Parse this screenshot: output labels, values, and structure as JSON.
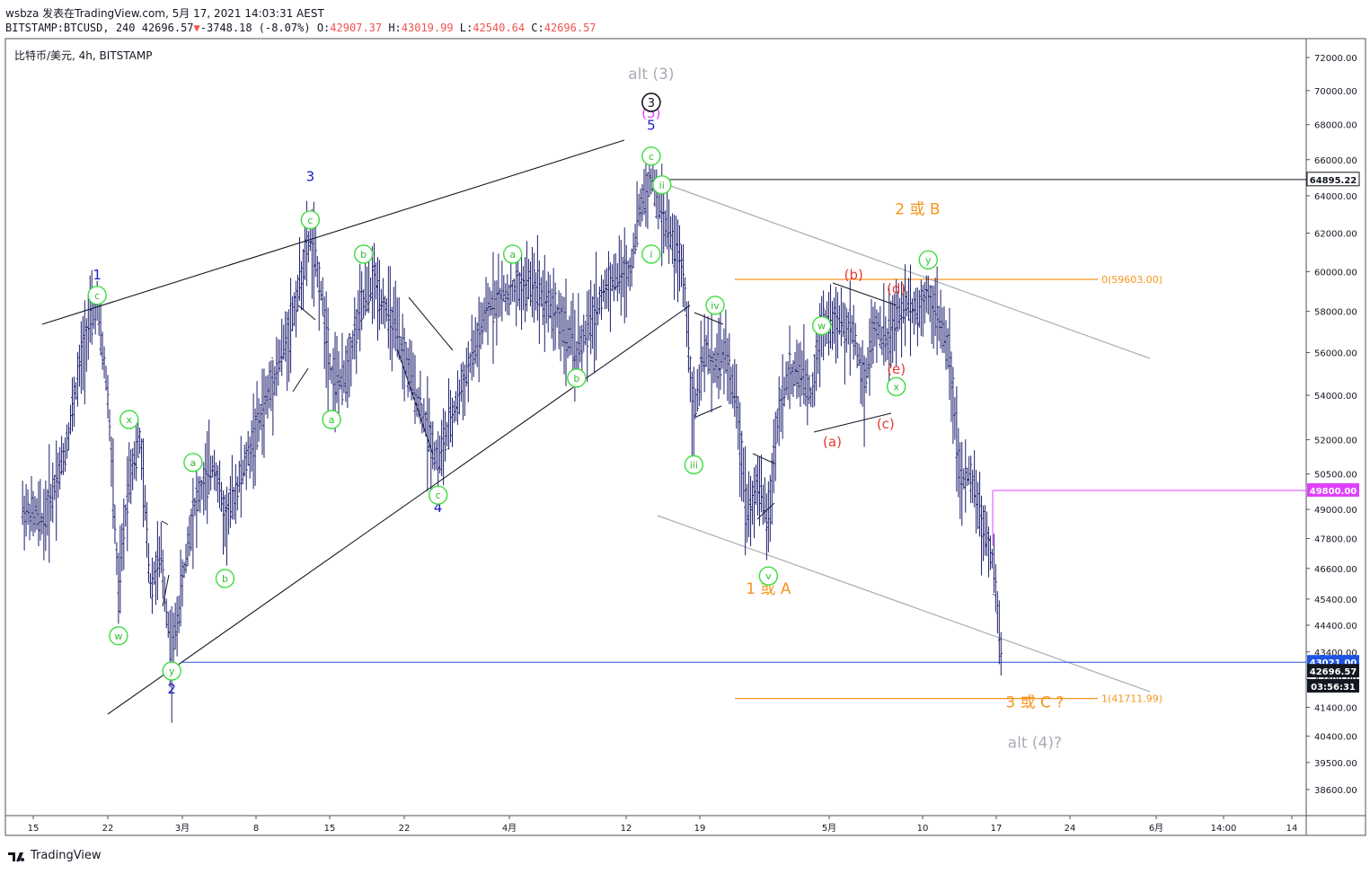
{
  "header": {
    "line1": "wsbza 发表在TradingView.com, 5月 17, 2021 14:03:31 AEST",
    "symbol": "BITSTAMP:BTCUSD, 240",
    "last": "42696.57",
    "change": "-3748.18 (-8.07%)",
    "o_label": "O:",
    "o": "42907.37",
    "h_label": "H:",
    "h": "43019.99",
    "l_label": "L:",
    "l": "42540.64",
    "c_label": "C:",
    "c": "42696.57"
  },
  "chart_title": "比特币/美元, 4h, BITSTAMP",
  "footer": {
    "brand": "TradingView"
  },
  "chart_data": {
    "type": "line",
    "scale": "log",
    "ylim": [
      37500,
      73000
    ],
    "y_ticks": [
      38600,
      39500,
      40400,
      41400,
      42400,
      43400,
      44400,
      45400,
      46600,
      47800,
      49000,
      50500,
      52000,
      54000,
      56000,
      58000,
      60000,
      62000,
      64000,
      66000,
      68000,
      70000,
      72000
    ],
    "y_tick_labels": [
      "38600.00",
      "39500.00",
      "40400.00",
      "41400.00",
      "42400.00",
      "43400.00",
      "44400.00",
      "45400.00",
      "46600.00",
      "47800.00",
      "49000.00",
      "50500.00",
      "52000.00",
      "54000.00",
      "56000.00",
      "58000.00",
      "60000.00",
      "62000.00",
      "64000.00",
      "66000.00",
      "68000.00",
      "70000.00",
      "72000.00"
    ],
    "x_ticks": [
      "15",
      "22",
      "3月",
      "8",
      "15",
      "22",
      "4月",
      "12",
      "19",
      "5月",
      "10",
      "17",
      "24",
      "6月",
      "14:00",
      "14"
    ],
    "price_path": [
      [
        "2021-02-14",
        49000
      ],
      [
        "2021-02-16",
        48500
      ],
      [
        "2021-02-18",
        51500
      ],
      [
        "2021-02-20",
        57000
      ],
      [
        "2021-02-21",
        58300
      ],
      [
        "2021-02-22",
        54000
      ],
      [
        "2021-02-23",
        45500
      ],
      [
        "2021-02-24",
        50500
      ],
      [
        "2021-02-25",
        52000
      ],
      [
        "2021-02-26",
        46000
      ],
      [
        "2021-02-27",
        47000
      ],
      [
        "2021-02-28",
        43100
      ],
      [
        "2021-03-01",
        46000
      ],
      [
        "2021-03-02",
        49000
      ],
      [
        "2021-03-04",
        51000
      ],
      [
        "2021-03-05",
        48500
      ],
      [
        "2021-03-07",
        51000
      ],
      [
        "2021-03-09",
        54000
      ],
      [
        "2021-03-11",
        57000
      ],
      [
        "2021-03-13",
        61800
      ],
      [
        "2021-03-14",
        59000
      ],
      [
        "2021-03-15",
        55000
      ],
      [
        "2021-03-16",
        54500
      ],
      [
        "2021-03-18",
        58500
      ],
      [
        "2021-03-19",
        59500
      ],
      [
        "2021-03-21",
        57000
      ],
      [
        "2021-03-23",
        54000
      ],
      [
        "2021-03-25",
        51000
      ],
      [
        "2021-03-26",
        52500
      ],
      [
        "2021-03-28",
        55500
      ],
      [
        "2021-03-30",
        58500
      ],
      [
        "2021-04-01",
        59000
      ],
      [
        "2021-04-03",
        59500
      ],
      [
        "2021-04-05",
        58000
      ],
      [
        "2021-04-07",
        56000
      ],
      [
        "2021-04-08",
        57000
      ],
      [
        "2021-04-10",
        59500
      ],
      [
        "2021-04-12",
        60000
      ],
      [
        "2021-04-13",
        63500
      ],
      [
        "2021-04-14",
        64895
      ],
      [
        "2021-04-15",
        63000
      ],
      [
        "2021-04-16",
        61500
      ],
      [
        "2021-04-17",
        60000
      ],
      [
        "2021-04-18",
        53000
      ],
      [
        "2021-04-19",
        56000
      ],
      [
        "2021-04-20",
        55500
      ],
      [
        "2021-04-21",
        56000
      ],
      [
        "2021-04-22",
        53500
      ],
      [
        "2021-04-23",
        49000
      ],
      [
        "2021-04-24",
        50000
      ],
      [
        "2021-04-25",
        48500
      ],
      [
        "2021-04-26",
        53500
      ],
      [
        "2021-04-27",
        55000
      ],
      [
        "2021-04-28",
        55000
      ],
      [
        "2021-04-29",
        54000
      ],
      [
        "2021-04-30",
        57500
      ],
      [
        "2021-05-01",
        57500
      ],
      [
        "2021-05-03",
        57000
      ],
      [
        "2021-05-04",
        54500
      ],
      [
        "2021-05-05",
        57500
      ],
      [
        "2021-05-06",
        56500
      ],
      [
        "2021-05-08",
        58500
      ],
      [
        "2021-05-09",
        58000
      ],
      [
        "2021-05-10",
        59000
      ],
      [
        "2021-05-11",
        57500
      ],
      [
        "2021-05-12",
        56000
      ],
      [
        "2021-05-13",
        50000
      ],
      [
        "2021-05-14",
        50500
      ],
      [
        "2021-05-15",
        48500
      ],
      [
        "2021-05-16",
        47000
      ],
      [
        "2021-05-17",
        42696.57
      ]
    ],
    "price_labels": [
      {
        "value": "64895.22",
        "bg": "#ffffff",
        "fg": "#131722",
        "price": 64895.22
      },
      {
        "value": "49800.00",
        "bg": "#e040fb",
        "fg": "#ffffff",
        "price": 49800
      },
      {
        "value": "43021.00",
        "bg": "#1e53e5",
        "fg": "#ffffff",
        "price": 43021
      },
      {
        "value": "42696.57",
        "bg": "#131722",
        "fg": "#ffffff",
        "price": 42696.57
      },
      {
        "value": "03:56:31",
        "bg": "#131722",
        "fg": "#ffffff",
        "price": 42150
      }
    ],
    "fib_levels": [
      {
        "label": "0(59603.00)",
        "price": 59603
      },
      {
        "label": "1(41711.99)",
        "price": 41711.99
      }
    ],
    "wave_labels": [
      {
        "text": "1",
        "color": "#1a1acc",
        "date": "2021-02-21",
        "price": 59600
      },
      {
        "text": "2",
        "color": "#1a1acc",
        "date": "2021-02-28",
        "price": 41900
      },
      {
        "text": "3",
        "color": "#1a1acc",
        "date": "2021-03-13",
        "price": 64800
      },
      {
        "text": "4",
        "color": "#1a1acc",
        "date": "2021-03-25",
        "price": 48900
      },
      {
        "text": "5",
        "color": "#1a1acc",
        "date": "2021-04-14",
        "price": 67700
      },
      {
        "text": "alt (3)",
        "color": "#a9acb5",
        "date": "2021-04-14",
        "price": 70700
      },
      {
        "text": "(5)",
        "color": "#e040fb",
        "date": "2021-04-14",
        "price": 68400
      },
      {
        "text": "1 或 A",
        "color": "#f7941d",
        "date": "2021-04-25",
        "price": 45600
      },
      {
        "text": "2 或 B",
        "color": "#f7941d",
        "date": "2021-05-09",
        "price": 63000
      },
      {
        "text": "3 或 C ?",
        "color": "#f7941d",
        "date": "2021-05-20",
        "price": 41400
      },
      {
        "text": "alt (4)?",
        "color": "#a9acb5",
        "date": "2021-05-20",
        "price": 40000
      },
      {
        "text": "(a)",
        "color": "#e53935",
        "date": "2021-05-01",
        "price": 51700
      },
      {
        "text": "(b)",
        "color": "#e53935",
        "date": "2021-05-03",
        "price": 59600
      },
      {
        "text": "(c)",
        "color": "#e53935",
        "date": "2021-05-06",
        "price": 52500
      },
      {
        "text": "(d)",
        "color": "#e53935",
        "date": "2021-05-07",
        "price": 58900
      },
      {
        "text": "(e)",
        "color": "#e53935",
        "date": "2021-05-07",
        "price": 55000
      }
    ],
    "circle_labels": [
      {
        "text": "c",
        "date": "2021-02-21",
        "price": 58800
      },
      {
        "text": "x",
        "date": "2021-02-24",
        "price": 52900
      },
      {
        "text": "w",
        "date": "2021-02-23",
        "price": 44000
      },
      {
        "text": "a",
        "date": "2021-03-02",
        "price": 51000
      },
      {
        "text": "b",
        "date": "2021-03-05",
        "price": 46200
      },
      {
        "text": "y",
        "date": "2021-02-28",
        "price": 42700
      },
      {
        "text": "c",
        "date": "2021-03-13",
        "price": 62700
      },
      {
        "text": "a",
        "date": "2021-03-15",
        "price": 52900
      },
      {
        "text": "b",
        "date": "2021-03-18",
        "price": 60900
      },
      {
        "text": "c",
        "date": "2021-03-25",
        "price": 49600
      },
      {
        "text": "a",
        "date": "2021-04-01",
        "price": 60900
      },
      {
        "text": "b",
        "date": "2021-04-07",
        "price": 54800
      },
      {
        "text": "c",
        "date": "2021-04-14",
        "price": 66200
      },
      {
        "text": "ii",
        "date": "2021-04-15",
        "price": 64600
      },
      {
        "text": "i",
        "date": "2021-04-14",
        "price": 60900
      },
      {
        "text": "iv",
        "date": "2021-04-20",
        "price": 58300
      },
      {
        "text": "iii",
        "date": "2021-04-18",
        "price": 50900
      },
      {
        "text": "v",
        "date": "2021-04-25",
        "price": 46300
      },
      {
        "text": "w",
        "date": "2021-04-30",
        "price": 57300
      },
      {
        "text": "x",
        "date": "2021-05-07",
        "price": 54400
      },
      {
        "text": "y",
        "date": "2021-05-10",
        "price": 60600
      }
    ],
    "title": "",
    "xlabel": "",
    "ylabel": ""
  },
  "colors": {
    "bars": "#1c1e6e",
    "fib": "#f7941d",
    "grid": "none",
    "circle": "#3cdc3c",
    "channel": "#a9acb5"
  }
}
